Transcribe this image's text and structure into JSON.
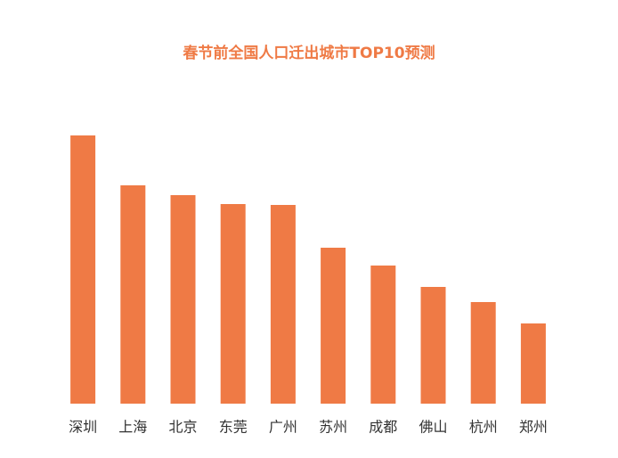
{
  "chart_data": {
    "type": "bar",
    "title": "春节前全国人口迁出城市TOP10预测",
    "categories": [
      "深圳",
      "上海",
      "北京",
      "东莞",
      "广州",
      "苏州",
      "成都",
      "佛山",
      "杭州",
      "郑州"
    ],
    "values": [
      301,
      245,
      234,
      224,
      223,
      175,
      155,
      131,
      114,
      90
    ],
    "color": "#ef7a45"
  }
}
